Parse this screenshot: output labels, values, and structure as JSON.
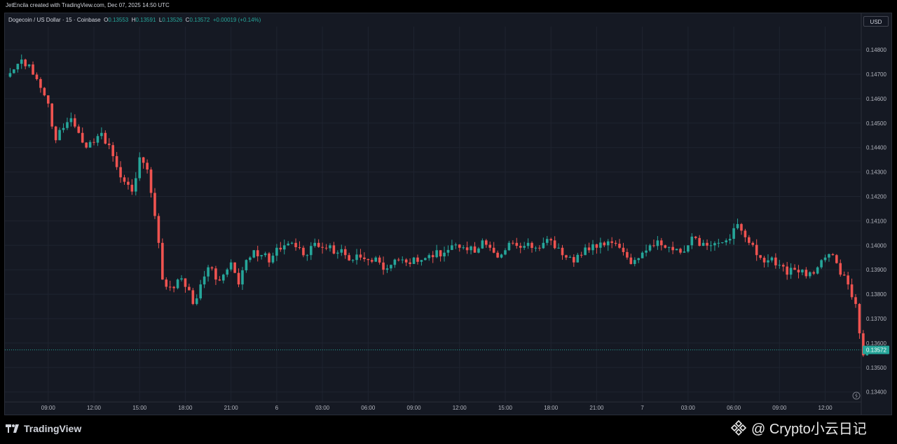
{
  "header": {
    "credit": "JetEncila created with TradingView.com, Dec 07, 2025 14:50 UTC"
  },
  "legend": {
    "symbol": "Dogecoin / US Dollar · 15 · Coinbase",
    "o_label": "O",
    "o_value": "0.13553",
    "h_label": "H",
    "h_value": "0.13591",
    "l_label": "L",
    "l_value": "0.13526",
    "c_label": "C",
    "c_value": "0.13572",
    "change": "+0.00019 (+0.14%)"
  },
  "currency_button": "USD",
  "footer": {
    "brand": "TradingView",
    "watermark": "@ Crypto小云日记"
  },
  "colors": {
    "up": "#26a69a",
    "down": "#ef5350",
    "background": "#151923",
    "grid": "#1f2430",
    "axis_text": "#b2b5be",
    "price_tag": "#26a69a"
  },
  "chart_data": {
    "type": "candlestick",
    "title": "Dogecoin / US Dollar · 15 · Coinbase",
    "interval": "15",
    "grid": true,
    "ylim": [
      0.13345,
      0.14845
    ],
    "y_ticks": [
      "0.14800",
      "0.14700",
      "0.14600",
      "0.14500",
      "0.14400",
      "0.14300",
      "0.14200",
      "0.14100",
      "0.14000",
      "0.13900",
      "0.13800",
      "0.13700",
      "0.13600",
      "0.13500",
      "0.13400"
    ],
    "y_tick_values": [
      0.148,
      0.147,
      0.146,
      0.145,
      0.144,
      0.143,
      0.142,
      0.141,
      0.14,
      0.139,
      0.138,
      0.137,
      0.136,
      0.135,
      0.134
    ],
    "x_ticks": [
      "09:00",
      "12:00",
      "15:00",
      "18:00",
      "21:00",
      "6",
      "03:00",
      "06:00",
      "09:00",
      "12:00",
      "15:00",
      "18:00",
      "21:00",
      "7",
      "03:00",
      "06:00",
      "09:00",
      "12:00"
    ],
    "x_tick_bar_index": [
      11,
      23,
      35,
      47,
      59,
      71,
      83,
      95,
      107,
      119,
      131,
      143,
      155,
      167,
      179,
      191,
      203,
      215
    ],
    "current_price": "0.13572",
    "current_price_value": 0.13572,
    "anchors": [
      [
        0,
        0.1469
      ],
      [
        2,
        0.1472
      ],
      [
        4,
        0.1476
      ],
      [
        6,
        0.1474
      ],
      [
        8,
        0.1468
      ],
      [
        11,
        0.1458
      ],
      [
        13,
        0.1443
      ],
      [
        15,
        0.1448
      ],
      [
        17,
        0.1452
      ],
      [
        19,
        0.1446
      ],
      [
        21,
        0.144
      ],
      [
        23,
        0.1442
      ],
      [
        25,
        0.1446
      ],
      [
        27,
        0.1441
      ],
      [
        29,
        0.1432
      ],
      [
        31,
        0.1426
      ],
      [
        33,
        0.1422
      ],
      [
        35,
        0.1436
      ],
      [
        37,
        0.1431
      ],
      [
        39,
        0.1412
      ],
      [
        40,
        0.1401
      ],
      [
        41,
        0.1386
      ],
      [
        43,
        0.1383
      ],
      [
        45,
        0.1386
      ],
      [
        47,
        0.1383
      ],
      [
        49,
        0.1376
      ],
      [
        51,
        0.1384
      ],
      [
        53,
        0.1391
      ],
      [
        55,
        0.1386
      ],
      [
        57,
        0.1388
      ],
      [
        59,
        0.1393
      ],
      [
        61,
        0.1384
      ],
      [
        63,
        0.1394
      ],
      [
        65,
        0.1398
      ],
      [
        67,
        0.1396
      ],
      [
        69,
        0.1393
      ],
      [
        71,
        0.1399
      ],
      [
        73,
        0.14
      ],
      [
        75,
        0.1401
      ],
      [
        77,
        0.1399
      ],
      [
        79,
        0.1396
      ],
      [
        81,
        0.1401
      ],
      [
        83,
        0.1399
      ],
      [
        85,
        0.14
      ],
      [
        87,
        0.1397
      ],
      [
        89,
        0.1396
      ],
      [
        91,
        0.1394
      ],
      [
        93,
        0.1395
      ],
      [
        95,
        0.1394
      ],
      [
        97,
        0.1395
      ],
      [
        99,
        0.139
      ],
      [
        101,
        0.1392
      ],
      [
        103,
        0.1394
      ],
      [
        105,
        0.1393
      ],
      [
        107,
        0.1395
      ],
      [
        109,
        0.1394
      ],
      [
        111,
        0.1396
      ],
      [
        113,
        0.1398
      ],
      [
        115,
        0.1397
      ],
      [
        117,
        0.14
      ],
      [
        119,
        0.1399
      ],
      [
        121,
        0.1398
      ],
      [
        123,
        0.1397
      ],
      [
        125,
        0.1402
      ],
      [
        127,
        0.1399
      ],
      [
        129,
        0.1395
      ],
      [
        131,
        0.1398
      ],
      [
        133,
        0.1401
      ],
      [
        135,
        0.1399
      ],
      [
        137,
        0.1401
      ],
      [
        139,
        0.1399
      ],
      [
        141,
        0.1401
      ],
      [
        143,
        0.1402
      ],
      [
        145,
        0.1399
      ],
      [
        147,
        0.1395
      ],
      [
        149,
        0.1393
      ],
      [
        151,
        0.1396
      ],
      [
        153,
        0.1398
      ],
      [
        155,
        0.1399
      ],
      [
        157,
        0.14
      ],
      [
        159,
        0.1401
      ],
      [
        161,
        0.1399
      ],
      [
        163,
        0.1395
      ],
      [
        165,
        0.1394
      ],
      [
        167,
        0.1397
      ],
      [
        169,
        0.14
      ],
      [
        171,
        0.1402
      ],
      [
        173,
        0.1399
      ],
      [
        175,
        0.1398
      ],
      [
        177,
        0.1397
      ],
      [
        179,
        0.14
      ],
      [
        181,
        0.1403
      ],
      [
        183,
        0.1401
      ],
      [
        185,
        0.14
      ],
      [
        187,
        0.1401
      ],
      [
        189,
        0.1402
      ],
      [
        191,
        0.1407
      ],
      [
        193,
        0.1406
      ],
      [
        195,
        0.1401
      ],
      [
        197,
        0.1396
      ],
      [
        199,
        0.1393
      ],
      [
        201,
        0.1395
      ],
      [
        203,
        0.1392
      ],
      [
        205,
        0.1388
      ],
      [
        207,
        0.139
      ],
      [
        209,
        0.139
      ],
      [
        211,
        0.1389
      ],
      [
        213,
        0.1391
      ],
      [
        215,
        0.1395
      ],
      [
        217,
        0.1396
      ],
      [
        219,
        0.1388
      ],
      [
        221,
        0.1384
      ],
      [
        223,
        0.1376
      ],
      [
        224,
        0.1364
      ],
      [
        225,
        0.1355
      ],
      [
        226,
        0.1357
      ]
    ]
  }
}
